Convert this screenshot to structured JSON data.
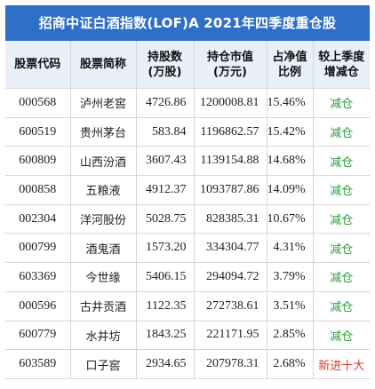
{
  "title": "招商中证白酒指数(LOF)A 2021年四季度重仓股",
  "table": {
    "headers": [
      "股票代码",
      "股票简称",
      "持股数\n(万股)",
      "持仓市值\n(万元)",
      "占净值\n比例",
      "较上季度\n增减仓"
    ],
    "rows": [
      {
        "code": "000568",
        "name": "泸州老窖",
        "shares": "4726.86",
        "value": "1200008.81",
        "ratio": "15.46%",
        "change": "减仓"
      },
      {
        "code": "600519",
        "name": "贵州茅台",
        "shares": "583.84",
        "value": "1196862.57",
        "ratio": "15.42%",
        "change": "减仓"
      },
      {
        "code": "600809",
        "name": "山西汾酒",
        "shares": "3607.43",
        "value": "1139154.88",
        "ratio": "14.68%",
        "change": "减仓"
      },
      {
        "code": "000858",
        "name": "五粮液",
        "shares": "4912.37",
        "value": "1093787.86",
        "ratio": "14.09%",
        "change": "减仓"
      },
      {
        "code": "002304",
        "name": "洋河股份",
        "shares": "5028.75",
        "value": "828385.31",
        "ratio": "10.67%",
        "change": "减仓"
      },
      {
        "code": "000799",
        "name": "酒鬼酒",
        "shares": "1573.20",
        "value": "334304.77",
        "ratio": "4.31%",
        "change": "减仓"
      },
      {
        "code": "603369",
        "name": "今世缘",
        "shares": "5406.15",
        "value": "294094.72",
        "ratio": "3.79%",
        "change": "减仓"
      },
      {
        "code": "000596",
        "name": "古井贡酒",
        "shares": "1122.35",
        "value": "272738.61",
        "ratio": "3.51%",
        "change": "减仓"
      },
      {
        "code": "600779",
        "name": "水井坊",
        "shares": "1843.25",
        "value": "221171.95",
        "ratio": "2.85%",
        "change": "减仓"
      },
      {
        "code": "603589",
        "name": "口子窖",
        "shares": "2934.65",
        "value": "207978.31",
        "ratio": "2.68%",
        "change": "新进十大"
      }
    ]
  },
  "colors": {
    "header_bar": "#2f6fc7",
    "header_row": "#e9f0fa",
    "reduce": "#2e9b3c",
    "new_entry": "#d63a2e"
  }
}
